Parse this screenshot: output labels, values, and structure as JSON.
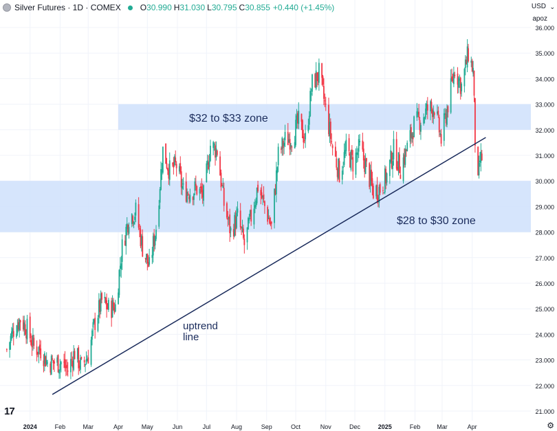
{
  "header": {
    "title": "Silver Futures · 1D · COMEX",
    "open_label": "O",
    "open": "30.990",
    "high_label": "H",
    "high": "31.030",
    "low_label": "L",
    "low": "30.795",
    "close_label": "C",
    "close": "30.855",
    "change": "+0.440 (+1.45%)"
  },
  "currency": "USD",
  "apoz": "apoz",
  "colors": {
    "up": "#22ab94",
    "down": "#f23645",
    "zone": "#cfe0fb",
    "trendline": "#1a2b5b",
    "annotation": "#1a2b5b",
    "grid": "#f0f3fa"
  },
  "chart_data": {
    "type": "candlestick",
    "ylim": [
      21,
      36
    ],
    "y_ticks": [
      "36.000",
      "35.000",
      "34.000",
      "33.000",
      "32.000",
      "31.000",
      "30.000",
      "29.000",
      "28.000",
      "27.000",
      "26.000",
      "25.000",
      "24.000",
      "23.000",
      "22.000",
      "21.000"
    ],
    "x_tick_labels": [
      "2024",
      "Feb",
      "Mar",
      "Apr",
      "May",
      "Jun",
      "Jul",
      "Aug",
      "Sep",
      "Oct",
      "Nov",
      "Dec",
      "2025",
      "Feb",
      "Mar",
      "Apr"
    ],
    "x_tick_dates": [
      "2024-01-01",
      "2024-02-01",
      "2024-03-01",
      "2024-04-01",
      "2024-05-01",
      "2024-06-01",
      "2024-07-01",
      "2024-08-01",
      "2024-09-01",
      "2024-10-01",
      "2024-11-01",
      "2024-12-01",
      "2025-01-01",
      "2025-02-01",
      "2025-03-01",
      "2025-04-01"
    ],
    "close_series": [
      [
        "2023-12-08",
        23.4
      ],
      [
        "2023-12-15",
        24.2
      ],
      [
        "2023-12-22",
        24.6
      ],
      [
        "2023-12-29",
        24.2
      ],
      [
        "2024-01-05",
        23.5
      ],
      [
        "2024-01-12",
        23.4
      ],
      [
        "2024-01-19",
        22.9
      ],
      [
        "2024-01-26",
        22.9
      ],
      [
        "2024-02-02",
        22.9
      ],
      [
        "2024-02-09",
        22.6
      ],
      [
        "2024-02-16",
        23.3
      ],
      [
        "2024-02-23",
        22.7
      ],
      [
        "2024-03-01",
        23.2
      ],
      [
        "2024-03-08",
        24.5
      ],
      [
        "2024-03-15",
        25.3
      ],
      [
        "2024-03-22",
        25.0
      ],
      [
        "2024-03-29",
        25.1
      ],
      [
        "2024-04-05",
        27.4
      ],
      [
        "2024-04-12",
        28.6
      ],
      [
        "2024-04-19",
        28.8
      ],
      [
        "2024-04-26",
        27.4
      ],
      [
        "2024-05-03",
        26.6
      ],
      [
        "2024-05-10",
        28.2
      ],
      [
        "2024-05-17",
        31.2
      ],
      [
        "2024-05-24",
        30.4
      ],
      [
        "2024-05-31",
        30.6
      ],
      [
        "2024-06-07",
        29.6
      ],
      [
        "2024-06-14",
        29.6
      ],
      [
        "2024-06-21",
        29.7
      ],
      [
        "2024-06-28",
        29.4
      ],
      [
        "2024-07-05",
        31.4
      ],
      [
        "2024-07-12",
        31.2
      ],
      [
        "2024-07-19",
        29.1
      ],
      [
        "2024-07-26",
        28.0
      ],
      [
        "2024-08-02",
        28.6
      ],
      [
        "2024-08-09",
        27.5
      ],
      [
        "2024-08-16",
        28.6
      ],
      [
        "2024-08-23",
        29.8
      ],
      [
        "2024-08-30",
        29.0
      ],
      [
        "2024-09-06",
        28.2
      ],
      [
        "2024-09-13",
        31.0
      ],
      [
        "2024-09-20",
        31.6
      ],
      [
        "2024-09-27",
        31.7
      ],
      [
        "2024-10-04",
        32.3
      ],
      [
        "2024-10-11",
        31.6
      ],
      [
        "2024-10-18",
        33.8
      ],
      [
        "2024-10-25",
        34.2
      ],
      [
        "2024-11-01",
        32.8
      ],
      [
        "2024-11-08",
        31.3
      ],
      [
        "2024-11-15",
        30.3
      ],
      [
        "2024-11-22",
        31.2
      ],
      [
        "2024-11-29",
        30.7
      ],
      [
        "2024-12-06",
        31.3
      ],
      [
        "2024-12-13",
        30.5
      ],
      [
        "2024-12-20",
        29.6
      ],
      [
        "2024-12-27",
        29.7
      ],
      [
        "2025-01-03",
        30.2
      ],
      [
        "2025-01-10",
        31.2
      ],
      [
        "2025-01-17",
        30.5
      ],
      [
        "2025-01-24",
        31.3
      ],
      [
        "2025-01-31",
        32.2
      ],
      [
        "2025-02-07",
        32.4
      ],
      [
        "2025-02-14",
        32.8
      ],
      [
        "2025-02-21",
        32.9
      ],
      [
        "2025-02-28",
        31.6
      ],
      [
        "2025-03-07",
        33.0
      ],
      [
        "2025-03-14",
        34.4
      ],
      [
        "2025-03-21",
        33.7
      ],
      [
        "2025-03-28",
        35.0
      ],
      [
        "2025-04-02",
        34.3
      ],
      [
        "2025-04-04",
        31.6
      ],
      [
        "2025-04-07",
        29.8
      ],
      [
        "2025-04-09",
        30.8
      ],
      [
        "2025-04-11",
        30.9
      ]
    ],
    "zones": [
      {
        "label": "$32 to $33 zone",
        "y_low": 32,
        "y_high": 33,
        "x_start": "2024-04-01"
      },
      {
        "label": "$28 to $30 zone",
        "y_low": 28,
        "y_high": 30,
        "x_start": "2023-12-01"
      }
    ],
    "trendline": {
      "label": "uptrend line",
      "start": [
        "2024-01-24",
        21.65
      ],
      "end": [
        "2025-04-15",
        31.7
      ]
    }
  }
}
